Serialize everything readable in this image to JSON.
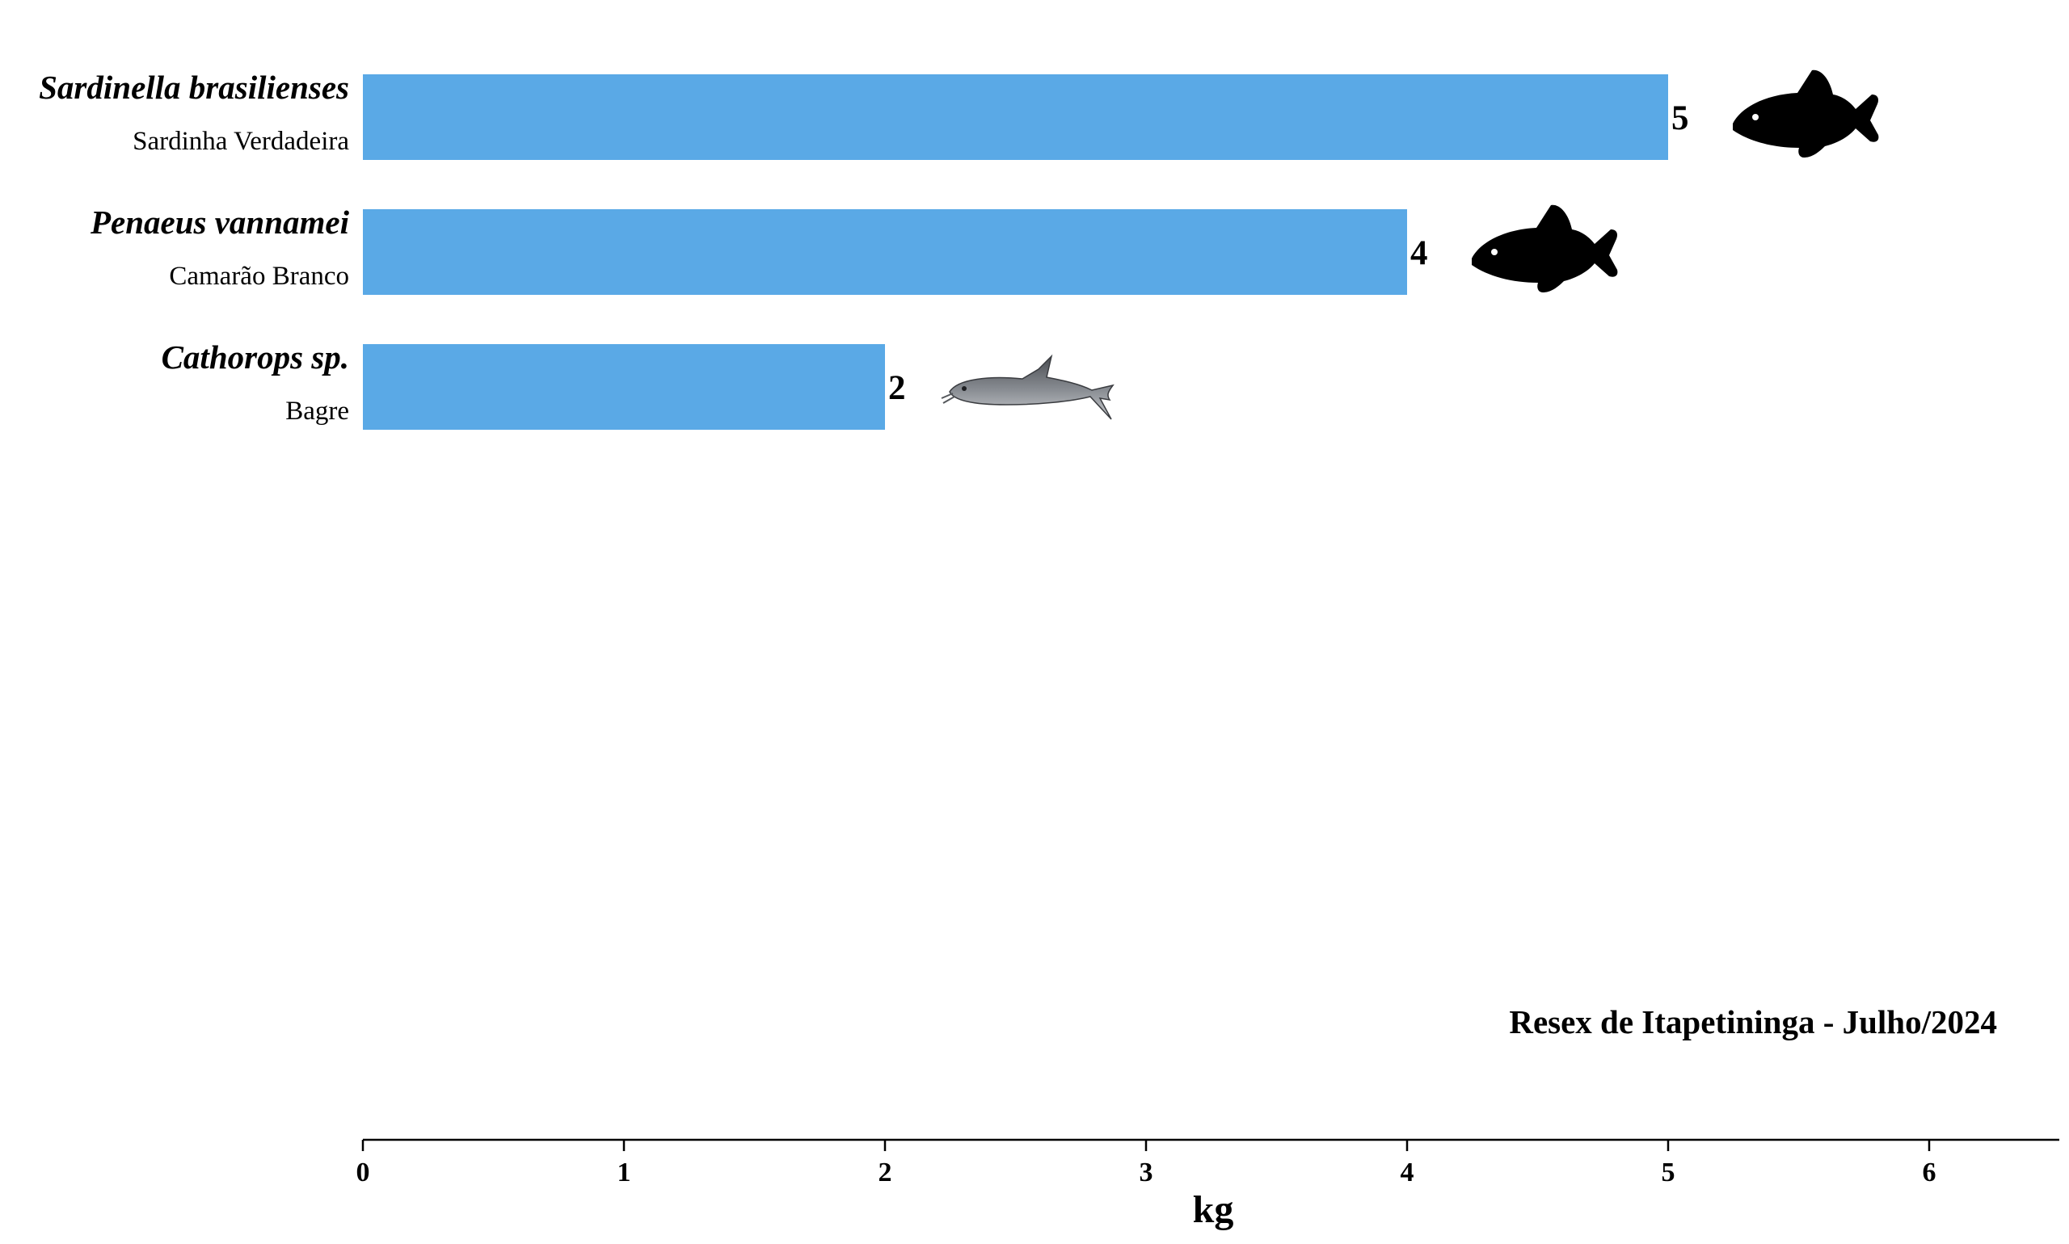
{
  "chart_data": {
    "type": "bar",
    "orientation": "horizontal",
    "categories": [
      {
        "scientific_name": "Sardinella brasilienses",
        "common_name": "Sardinha Verdadeira",
        "icon": "fish-silhouette-icon"
      },
      {
        "scientific_name": "Penaeus vannamei",
        "common_name": "Camarão Branco",
        "icon": "fish-silhouette-icon"
      },
      {
        "scientific_name": "Cathorops sp.",
        "common_name": "Bagre",
        "icon": "catfish-photo-icon"
      }
    ],
    "values": [
      5,
      4,
      2
    ],
    "value_labels": [
      "5",
      "4",
      "2"
    ],
    "xlabel": "kg",
    "xlim": [
      0,
      6.5
    ],
    "xticks": [
      "0",
      "1",
      "2",
      "3",
      "4",
      "5",
      "6"
    ],
    "annotation": "Resex de Itapetininga - Julho/2024",
    "grid": false,
    "bar_color": "#5aa9e6",
    "axis_color": "#000000"
  }
}
